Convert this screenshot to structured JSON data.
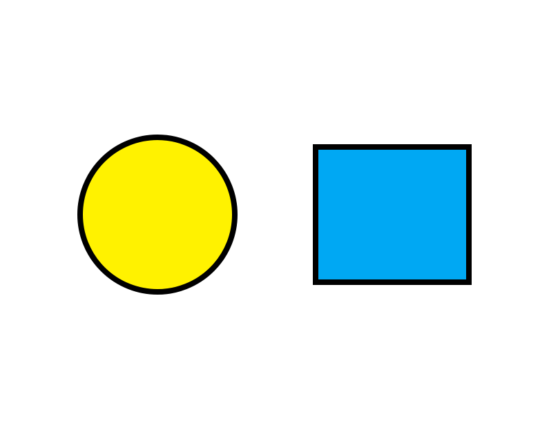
{
  "scene": {
    "background": "#ffffff",
    "shapes": [
      {
        "name": "yellow-circle",
        "kind": "circle",
        "fill": "#fff200",
        "stroke": "#000000"
      },
      {
        "name": "blue-square",
        "kind": "rectangle",
        "fill": "#00a8f3",
        "stroke": "#000000"
      }
    ]
  }
}
